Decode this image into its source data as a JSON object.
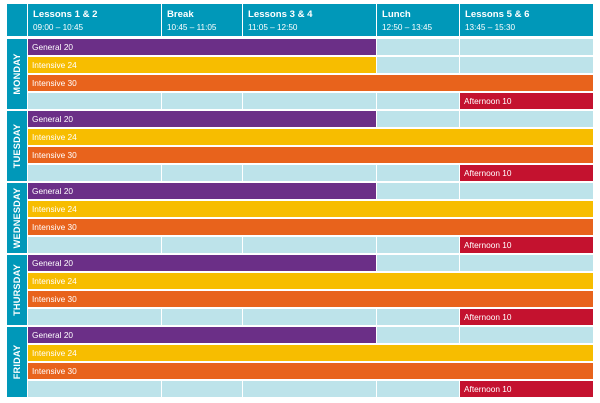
{
  "header": {
    "columns": [
      {
        "title": "Lessons 1 & 2",
        "time": "09:00 – 10:45"
      },
      {
        "title": "Break",
        "time": "10:45 – 11:05"
      },
      {
        "title": "Lessons 3 & 4",
        "time": "11:05 – 12:50"
      },
      {
        "title": "Lunch",
        "time": "12:50 – 13:45"
      },
      {
        "title": "Lessons 5 & 6",
        "time": "13:45 – 15:30"
      }
    ]
  },
  "days": [
    "MONDAY",
    "TUESDAY",
    "WEDNESDAY",
    "THURSDAY",
    "FRIDAY"
  ],
  "courses": [
    {
      "name": "General 20",
      "color": "#6b2f87",
      "ends_after": "Lessons 3 & 4"
    },
    {
      "name": "Intensive 24",
      "color": "#f7bd00",
      "ends_after": "Lessons 3 & 4",
      "monday_ends_after": "Lessons 3 & 4",
      "other_days_ends_after": "Lessons 5 & 6"
    },
    {
      "name": "Intensive 30",
      "color": "#e8631c",
      "ends_after": "Lessons 5 & 6"
    },
    {
      "name": "Afternoon 10",
      "color": "#c4122f",
      "starts_at": "Lessons 5 & 6"
    }
  ],
  "colors": {
    "header": "#0098b9",
    "empty_cell": "#bde3ea"
  }
}
